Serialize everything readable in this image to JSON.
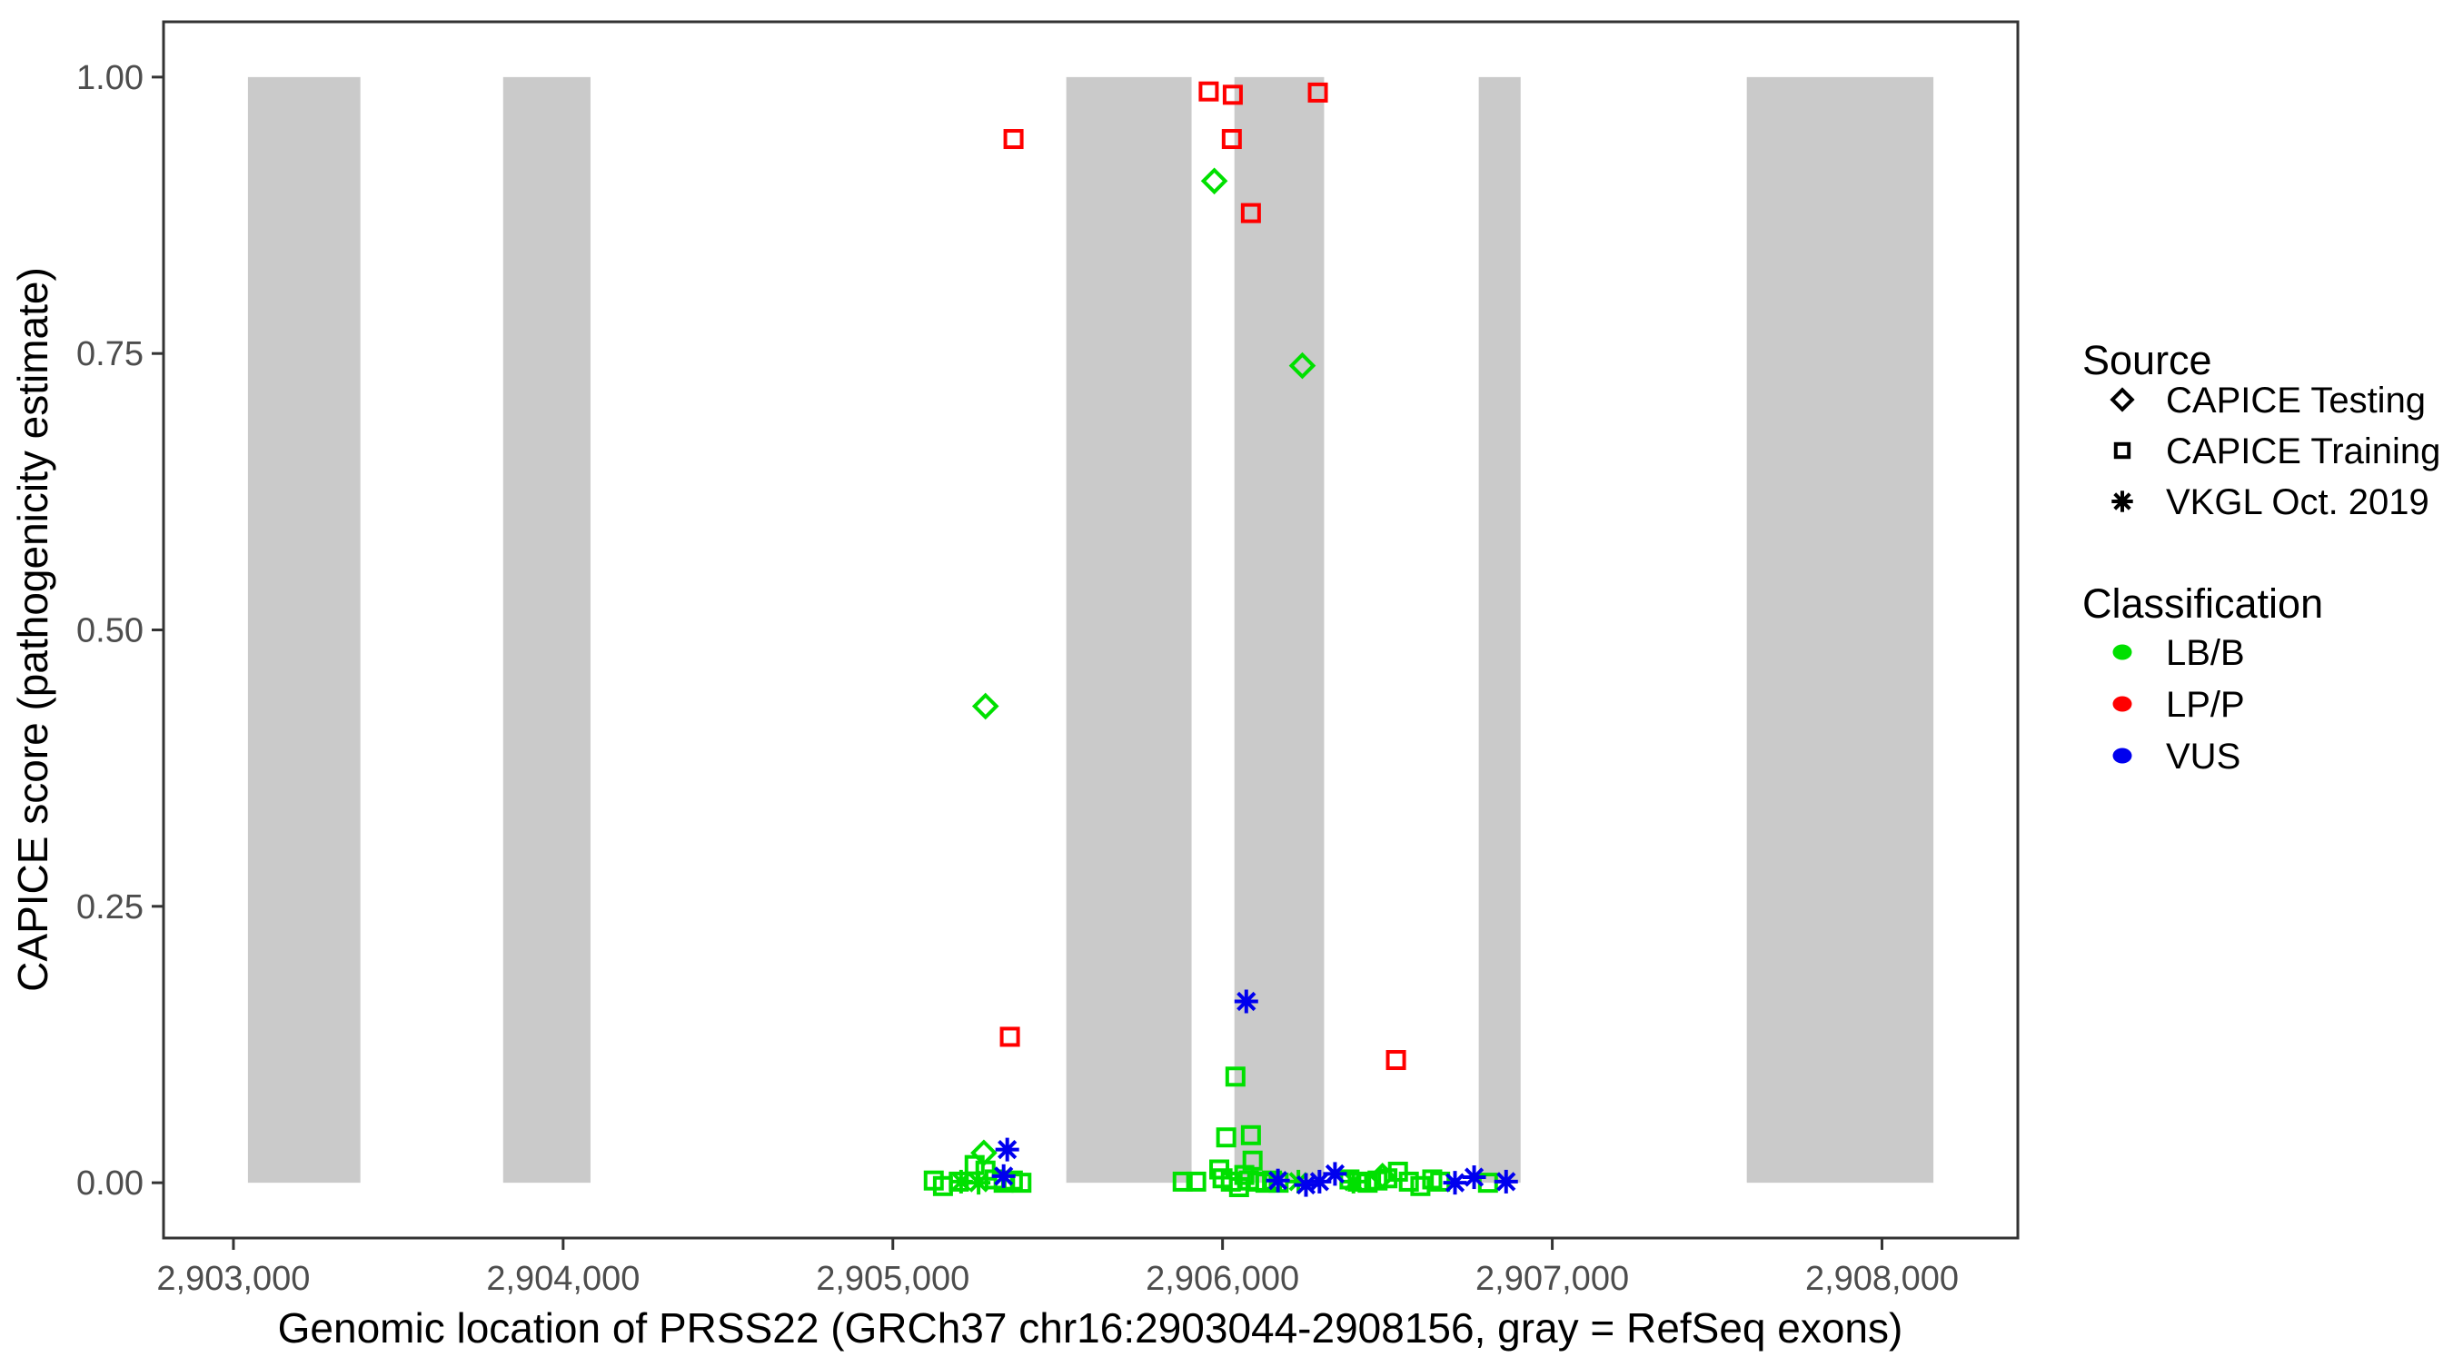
{
  "page": {
    "background": "#FFFFFF"
  },
  "colors": {
    "exon_gray": "#CACACA",
    "panel_border": "#333333",
    "tick_mark": "#333333",
    "tick_label": "#4D4D4D",
    "title_text": "#000000",
    "legend_text": "#000000",
    "lbb_green": "#00E000",
    "lpp_red": "#FF0000",
    "vus_blue": "#0000EE"
  },
  "legend": {
    "source": {
      "title": "Source",
      "items": [
        {
          "symbol": "diamond",
          "label": "CAPICE Testing"
        },
        {
          "symbol": "square",
          "label": "CAPICE Training"
        },
        {
          "symbol": "asterisk",
          "label": "VKGL Oct. 2019"
        }
      ]
    },
    "classification": {
      "title": "Classification",
      "items": [
        {
          "color_key": "lbb_green",
          "label": "LB/B"
        },
        {
          "color_key": "lpp_red",
          "label": "LP/P"
        },
        {
          "color_key": "vus_blue",
          "label": "VUS"
        }
      ]
    }
  },
  "chart_data": {
    "type": "scatter",
    "title": "",
    "xlabel": "Genomic location of PRSS22 (GRCh37 chr16:2903044-2908156, gray = RefSeq exons)",
    "ylabel": "CAPICE score (pathogenicity estimate)",
    "xlim": [
      2902788,
      2908412
    ],
    "ylim": [
      -0.05,
      1.05
    ],
    "grid": false,
    "legend_position": "right",
    "x_ticks": [
      {
        "value": 2903000,
        "label": "2,903,000"
      },
      {
        "value": 2904000,
        "label": "2,904,000"
      },
      {
        "value": 2905000,
        "label": "2,905,000"
      },
      {
        "value": 2906000,
        "label": "2,906,000"
      },
      {
        "value": 2907000,
        "label": "2,907,000"
      },
      {
        "value": 2908000,
        "label": "2,908,000"
      }
    ],
    "y_ticks": [
      {
        "value": 0.0,
        "label": "0.00"
      },
      {
        "value": 0.25,
        "label": "0.25"
      },
      {
        "value": 0.5,
        "label": "0.50"
      },
      {
        "value": 0.75,
        "label": "0.75"
      },
      {
        "value": 1.0,
        "label": "1.00"
      }
    ],
    "exons_note": "gray vertical bands = RefSeq exons, drawn from score 0 to score 1",
    "exons": [
      [
        2903044,
        2903385
      ],
      [
        2903818,
        2904083
      ],
      [
        2905526,
        2905906
      ],
      [
        2906036,
        2906308
      ],
      [
        2906777,
        2906904
      ],
      [
        2907590,
        2908156
      ]
    ],
    "series": [
      {
        "name": "CAPICE Testing / LB/B",
        "source": "CAPICE Testing",
        "classification": "LB/B",
        "shape": "diamond",
        "color_key": "lbb_green",
        "points": [
          [
            2905975,
            0.906
          ],
          [
            2906242,
            0.739
          ],
          [
            2905281,
            0.431
          ],
          [
            2905276,
            0.027
          ],
          [
            2906485,
            0.006
          ]
        ]
      },
      {
        "name": "CAPICE Training / LP/P",
        "source": "CAPICE Training",
        "classification": "LP/P",
        "shape": "square",
        "color_key": "lpp_red",
        "points": [
          [
            2905366,
            0.944
          ],
          [
            2905958,
            0.987
          ],
          [
            2906031,
            0.984
          ],
          [
            2906289,
            0.986
          ],
          [
            2906028,
            0.944
          ],
          [
            2906086,
            0.877
          ],
          [
            2905355,
            0.132
          ],
          [
            2906526,
            0.111
          ]
        ]
      },
      {
        "name": "CAPICE Training / LB/B",
        "source": "CAPICE Training",
        "classification": "LB/B",
        "shape": "square",
        "color_key": "lbb_green",
        "points": [
          [
            2905124,
            0.002
          ],
          [
            2905152,
            -0.003
          ],
          [
            2905200,
            0.001
          ],
          [
            2905248,
            0.016
          ],
          [
            2905281,
            0.011
          ],
          [
            2905309,
            0.003
          ],
          [
            2905336,
            0.0
          ],
          [
            2905364,
            0.002
          ],
          [
            2905390,
            0.0
          ],
          [
            2905879,
            0.001
          ],
          [
            2905920,
            0.001
          ],
          [
            2905990,
            0.012
          ],
          [
            2906000,
            0.004
          ],
          [
            2906011,
            0.041
          ],
          [
            2906025,
            0.001
          ],
          [
            2906039,
            0.096
          ],
          [
            2906050,
            -0.004
          ],
          [
            2906066,
            0.007
          ],
          [
            2906080,
            0.002
          ],
          [
            2906086,
            0.043
          ],
          [
            2906091,
            0.02
          ],
          [
            2906105,
            0.001
          ],
          [
            2906130,
            0.0
          ],
          [
            2906150,
            0.002
          ],
          [
            2906170,
            0.0
          ],
          [
            2906385,
            0.003
          ],
          [
            2906410,
            0.001
          ],
          [
            2906440,
            0.0
          ],
          [
            2906470,
            0.002
          ],
          [
            2906500,
            0.004
          ],
          [
            2906532,
            0.01
          ],
          [
            2906565,
            0.001
          ],
          [
            2906600,
            -0.003
          ],
          [
            2906636,
            0.003
          ],
          [
            2906660,
            0.001
          ],
          [
            2906805,
            0.0
          ]
        ]
      },
      {
        "name": "VKGL Oct. 2019 / LB/B",
        "source": "VKGL Oct. 2019",
        "classification": "LB/B",
        "shape": "asterisk",
        "color_key": "lbb_green",
        "points": [
          [
            2905207,
            0.001
          ],
          [
            2905260,
            0.0
          ],
          [
            2906230,
            0.001
          ],
          [
            2906397,
            0.001
          ]
        ]
      },
      {
        "name": "VKGL Oct. 2019 / VUS",
        "source": "VKGL Oct. 2019",
        "classification": "VUS",
        "shape": "asterisk",
        "color_key": "vus_blue",
        "points": [
          [
            2905336,
            0.006
          ],
          [
            2905347,
            0.03
          ],
          [
            2906072,
            0.164
          ],
          [
            2906168,
            0.002
          ],
          [
            2906253,
            -0.002
          ],
          [
            2906294,
            0.001
          ],
          [
            2906341,
            0.008
          ],
          [
            2906705,
            0.0
          ],
          [
            2906763,
            0.005
          ],
          [
            2906860,
            0.001
          ]
        ]
      }
    ]
  }
}
